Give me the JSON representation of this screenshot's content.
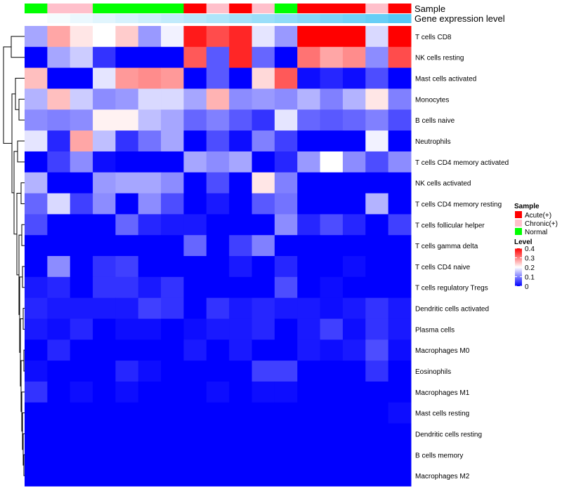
{
  "chart_data": {
    "type": "heatmap",
    "title": "",
    "annotation_rows": [
      "Sample",
      "Gene expression level"
    ],
    "sample_groups": [
      "Normal",
      "Chronic",
      "Chronic",
      "Normal",
      "Normal",
      "Normal",
      "Normal",
      "Acute",
      "Chronic",
      "Acute",
      "Chronic",
      "Normal",
      "Acute",
      "Acute",
      "Acute",
      "Chronic",
      "Acute"
    ],
    "gene_expression_level": [
      0.0,
      0.06,
      0.12,
      0.18,
      0.24,
      0.3,
      0.36,
      0.42,
      0.48,
      0.54,
      0.6,
      0.66,
      0.72,
      0.78,
      0.84,
      0.9,
      1.0
    ],
    "rows": [
      "T cells CD8",
      "NK cells resting",
      "Mast cells activated",
      "Monocytes",
      "B cells naive",
      "Neutrophils",
      "T cells CD4 memory activated",
      "NK cells activated",
      "T cells CD4 memory resting",
      "T cells follicular helper",
      "T cells gamma delta",
      "T cells CD4 naive",
      "T cells regulatory  Tregs",
      "Dendritic cells activated",
      "Plasma cells",
      "Macrophages M0",
      "Eosinophils",
      "Macrophages M1",
      "Mast cells resting",
      "Dendritic cells resting",
      "B cells memory",
      "Macrophages M2"
    ],
    "values": [
      [
        0.13,
        0.27,
        0.22,
        0.2,
        0.24,
        0.12,
        0.19,
        0.38,
        0.34,
        0.37,
        0.18,
        0.12,
        0.4,
        0.4,
        0.4,
        0.17,
        0.4
      ],
      [
        0.0,
        0.13,
        0.16,
        0.04,
        0.0,
        0.0,
        0.0,
        0.33,
        0.07,
        0.37,
        0.08,
        0.0,
        0.31,
        0.27,
        0.29,
        0.11,
        0.34
      ],
      [
        0.25,
        0.0,
        0.0,
        0.18,
        0.28,
        0.29,
        0.28,
        0.0,
        0.07,
        0.0,
        0.23,
        0.33,
        0.01,
        0.03,
        0.01,
        0.06,
        0.0
      ],
      [
        0.14,
        0.25,
        0.16,
        0.11,
        0.12,
        0.17,
        0.17,
        0.13,
        0.26,
        0.11,
        0.12,
        0.11,
        0.14,
        0.1,
        0.14,
        0.22,
        0.1
      ],
      [
        0.11,
        0.1,
        0.11,
        0.21,
        0.21,
        0.15,
        0.13,
        0.08,
        0.1,
        0.07,
        0.04,
        0.18,
        0.08,
        0.07,
        0.08,
        0.1,
        0.06
      ],
      [
        0.18,
        0.03,
        0.27,
        0.15,
        0.04,
        0.09,
        0.13,
        0.0,
        0.06,
        0.01,
        0.1,
        0.05,
        0.0,
        0.0,
        0.0,
        0.19,
        0.0
      ],
      [
        0.0,
        0.05,
        0.11,
        0.01,
        0.0,
        0.0,
        0.0,
        0.13,
        0.11,
        0.13,
        0.0,
        0.03,
        0.12,
        0.2,
        0.11,
        0.06,
        0.11
      ],
      [
        0.14,
        0.0,
        0.0,
        0.12,
        0.13,
        0.13,
        0.11,
        0.0,
        0.06,
        0.0,
        0.22,
        0.1,
        0.0,
        0.0,
        0.0,
        0.0,
        0.0
      ],
      [
        0.08,
        0.17,
        0.05,
        0.11,
        0.0,
        0.11,
        0.06,
        0.0,
        0.02,
        0.0,
        0.07,
        0.09,
        0.0,
        0.0,
        0.0,
        0.14,
        0.0
      ],
      [
        0.06,
        0.0,
        0.0,
        0.0,
        0.08,
        0.03,
        0.02,
        0.02,
        0.0,
        0.0,
        0.0,
        0.11,
        0.03,
        0.06,
        0.03,
        0.0,
        0.05
      ],
      [
        0.0,
        0.0,
        0.0,
        0.0,
        0.0,
        0.0,
        0.0,
        0.08,
        0.0,
        0.05,
        0.1,
        0.0,
        0.0,
        0.0,
        0.0,
        0.0,
        0.0
      ],
      [
        0.0,
        0.11,
        0.0,
        0.04,
        0.05,
        0.0,
        0.0,
        0.0,
        0.0,
        0.02,
        0.0,
        0.03,
        0.0,
        0.0,
        0.01,
        0.0,
        0.0
      ],
      [
        0.02,
        0.03,
        0.0,
        0.04,
        0.04,
        0.02,
        0.04,
        0.0,
        0.0,
        0.0,
        0.0,
        0.06,
        0.0,
        0.01,
        0.0,
        0.0,
        0.0
      ],
      [
        0.03,
        0.02,
        0.02,
        0.02,
        0.02,
        0.05,
        0.04,
        0.0,
        0.04,
        0.02,
        0.03,
        0.02,
        0.02,
        0.01,
        0.02,
        0.04,
        0.02
      ],
      [
        0.02,
        0.01,
        0.03,
        0.0,
        0.01,
        0.01,
        0.0,
        0.01,
        0.02,
        0.02,
        0.03,
        0.0,
        0.02,
        0.05,
        0.01,
        0.04,
        0.02
      ],
      [
        0.0,
        0.03,
        0.0,
        0.0,
        0.0,
        0.0,
        0.0,
        0.02,
        0.0,
        0.02,
        0.0,
        0.0,
        0.02,
        0.01,
        0.02,
        0.06,
        0.01
      ],
      [
        0.01,
        0.0,
        0.0,
        0.0,
        0.03,
        0.01,
        0.0,
        0.0,
        0.0,
        0.0,
        0.05,
        0.05,
        0.0,
        0.0,
        0.0,
        0.04,
        0.0
      ],
      [
        0.04,
        0.0,
        0.01,
        0.0,
        0.01,
        0.0,
        0.0,
        0.0,
        0.01,
        0.0,
        0.01,
        0.01,
        0.0,
        0.0,
        0.0,
        0.0,
        0.0
      ],
      [
        0.0,
        0.0,
        0.0,
        0.0,
        0.0,
        0.0,
        0.0,
        0.0,
        0.0,
        0.0,
        0.0,
        0.0,
        0.0,
        0.0,
        0.0,
        0.0,
        0.01
      ],
      [
        0.0,
        0.0,
        0.0,
        0.0,
        0.0,
        0.0,
        0.0,
        0.0,
        0.0,
        0.0,
        0.0,
        0.0,
        0.0,
        0.0,
        0.0,
        0.0,
        0.0
      ],
      [
        0.0,
        0.0,
        0.0,
        0.0,
        0.0,
        0.0,
        0.0,
        0.0,
        0.0,
        0.0,
        0.0,
        0.0,
        0.0,
        0.0,
        0.0,
        0.0,
        0.0
      ],
      [
        0.0,
        0.0,
        0.0,
        0.0,
        0.0,
        0.0,
        0.0,
        0.0,
        0.0,
        0.0,
        0.0,
        0.0,
        0.0,
        0.0,
        0.0,
        0.0,
        0.0
      ]
    ],
    "color_scale": {
      "min": 0,
      "max": 0.4,
      "low": "#0000ff",
      "mid": "#ffffff",
      "high": "#ff0000",
      "mid_value": 0.2
    },
    "ge_colors": {
      "low": "#ffffff",
      "high": "#56c8f5"
    },
    "legend": {
      "sample_title": "Sample",
      "sample_items": [
        {
          "label": "Acute(+)",
          "key": "Acute",
          "color": "#ff0000"
        },
        {
          "label": "Chronic(+)",
          "key": "Chronic",
          "color": "#ffc0cb"
        },
        {
          "label": "Normal",
          "key": "Normal",
          "color": "#00ff00"
        }
      ],
      "level_title": "Level",
      "level_ticks": [
        "0.4",
        "0.3",
        "0.2",
        "0.1",
        "0"
      ],
      "level_tick_values": [
        0.4,
        0.3,
        0.2,
        0.1,
        0
      ],
      "position": "right"
    }
  }
}
